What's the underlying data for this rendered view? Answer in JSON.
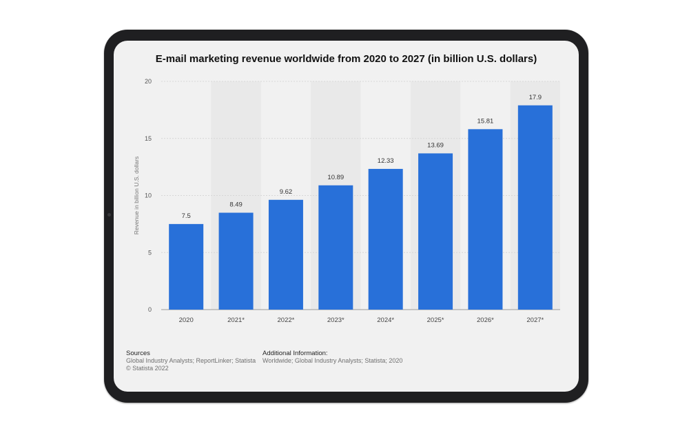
{
  "chart_data": {
    "type": "bar",
    "title": "E-mail marketing revenue worldwide from 2020 to 2027 (in billion U.S. dollars)",
    "categories": [
      "2020",
      "2021*",
      "2022*",
      "2023*",
      "2024*",
      "2025*",
      "2026*",
      "2027*"
    ],
    "values": [
      7.5,
      8.49,
      9.62,
      10.89,
      12.33,
      13.69,
      15.81,
      17.9
    ],
    "value_labels": [
      "7.5",
      "8.49",
      "9.62",
      "10.89",
      "12.33",
      "13.69",
      "15.81",
      "17.9"
    ],
    "ylabel": "Revenue in billion U.S. dollars",
    "xlabel": "",
    "ylim": [
      0,
      20
    ],
    "yticks": [
      0,
      5,
      10,
      15,
      20
    ],
    "grid": true,
    "bar_color": "#2870d9"
  },
  "footer": {
    "sources_heading": "Sources",
    "sources_text": "Global Industry Analysts; ReportLinker; Statista",
    "copyright": "© Statista 2022",
    "additional_heading": "Additional Information:",
    "additional_text": "Worldwide; Global Industry Analysts; Statista; 2020"
  }
}
